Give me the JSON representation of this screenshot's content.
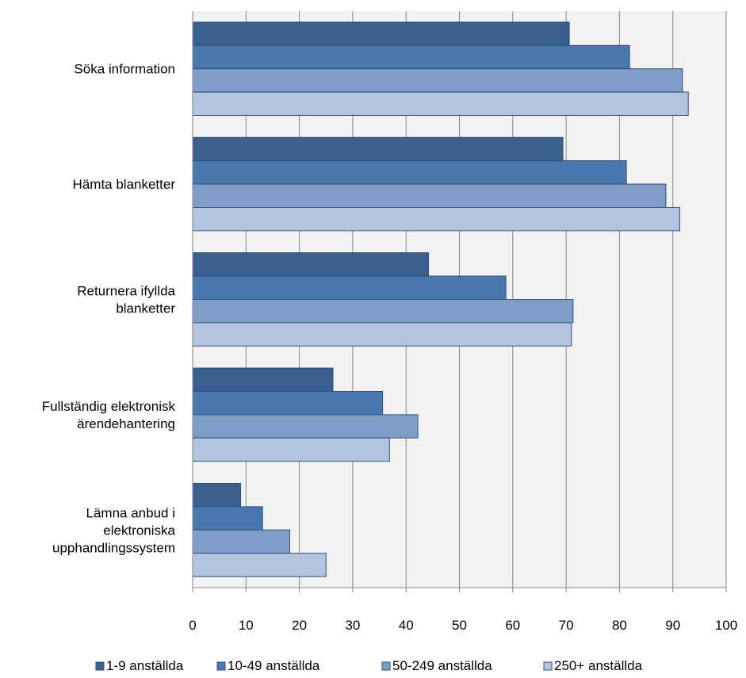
{
  "chart_data": {
    "type": "bar",
    "orientation": "horizontal",
    "categories": [
      [
        "Söka information"
      ],
      [
        "Hämta blanketter"
      ],
      [
        "Returnera ifyllda",
        "blanketter"
      ],
      [
        "Fullständig elektronisk",
        "ärendehantering"
      ],
      [
        "Lämna anbud i",
        "elektroniska",
        "upphandlingssystem"
      ]
    ],
    "series": [
      {
        "name": "1-9 anställda",
        "color": "#3a5f8f",
        "values": [
          70.6,
          69.4,
          44.2,
          26.3,
          9.0
        ]
      },
      {
        "name": "10-49 anställda",
        "color": "#4878ad",
        "values": [
          81.9,
          81.3,
          58.7,
          35.6,
          13.1
        ]
      },
      {
        "name": "50-249 anställda",
        "color": "#7e9dc7",
        "values": [
          91.8,
          88.7,
          71.3,
          42.2,
          18.2
        ]
      },
      {
        "name": "250+ anställda",
        "color": "#b3c4df",
        "values": [
          92.9,
          91.3,
          71.0,
          36.9,
          25.0
        ]
      }
    ],
    "xticks": [
      "0",
      "10",
      "20",
      "30",
      "40",
      "50",
      "60",
      "70",
      "80",
      "90",
      "100"
    ],
    "xlim": [
      0,
      100
    ],
    "grid": true,
    "legend_position": "bottom",
    "title": "",
    "xlabel": "",
    "ylabel": ""
  }
}
